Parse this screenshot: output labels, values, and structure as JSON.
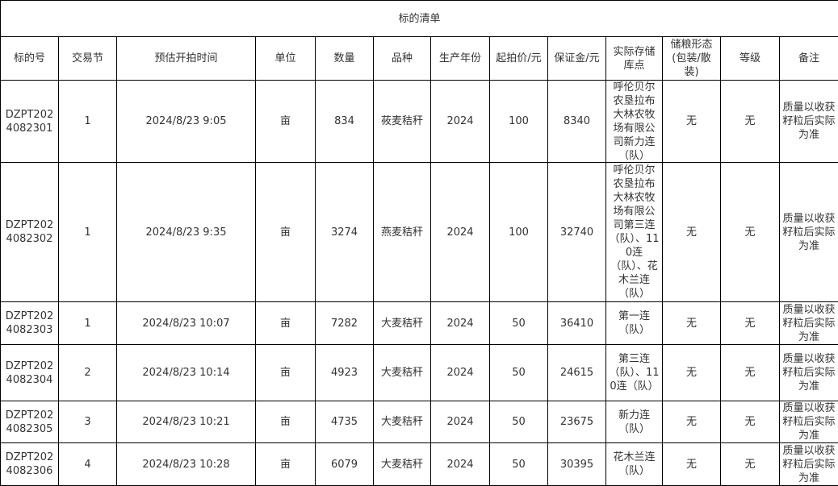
{
  "title": "标的清单",
  "headers": [
    "标的号",
    "交易节",
    "预估开拍时间",
    "单位",
    "数量",
    "品种",
    "生产年份",
    "起拍价/元",
    "保证金/元",
    "实际存储库点",
    "储粮形态(包装/散装)",
    "等级",
    "备注"
  ],
  "rows": [
    [
      "DZPT2024082301",
      "1",
      "2024/8/23 9:05",
      "亩",
      "834",
      "莜麦秸秆",
      "2024",
      "100",
      "8340",
      "呼伦贝尔农垦拉布大林农牧场有限公司新力连（队）",
      "无",
      "无",
      "质量以收获籽粒后实际为准"
    ],
    [
      "DZPT2024082302",
      "1",
      "2024/8/23 9:35",
      "亩",
      "3274",
      "燕麦秸秆",
      "2024",
      "100",
      "32740",
      "呼伦贝尔农垦拉布大林农牧场有限公司第三连（队）、110连（队）、花木兰连（队）",
      "无",
      "无",
      "质量以收获籽粒后实际为准"
    ],
    [
      "DZPT2024082303",
      "1",
      "2024/8/23 10:07",
      "亩",
      "7282",
      "大麦秸秆",
      "2024",
      "50",
      "36410",
      "第一连（队）",
      "无",
      "无",
      "质量以收获籽粒后实际为准"
    ],
    [
      "DZPT2024082304",
      "2",
      "2024/8/23 10:14",
      "亩",
      "4923",
      "大麦秸秆",
      "2024",
      "50",
      "24615",
      "第三连（队）、110连（队）",
      "无",
      "无",
      "质量以收获籽粒后实际为准"
    ],
    [
      "DZPT2024082305",
      "3",
      "2024/8/23 10:21",
      "亩",
      "4735",
      "大麦秸秆",
      "2024",
      "50",
      "23675",
      "新力连（队）",
      "无",
      "无",
      "质量以收获籽粒后实际为准"
    ],
    [
      "DZPT2024082306",
      "4",
      "2024/8/23 10:28",
      "亩",
      "6079",
      "大麦秸秆",
      "2024",
      "50",
      "30395",
      "花木兰连（队）",
      "无",
      "无",
      "质量以收获籽粒后实际为准"
    ]
  ]
}
